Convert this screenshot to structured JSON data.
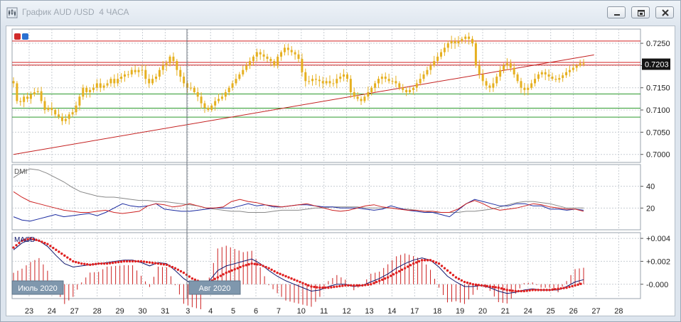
{
  "window": {
    "title": "График AUD /USD  4 ЧАСА",
    "controls": {
      "minimize": "minimize-icon",
      "restore": "restore-icon",
      "close": "close-icon"
    }
  },
  "colors": {
    "candle": "#e6b020",
    "resistance": "#d02020",
    "support": "#2c9a2c",
    "trendline": "#c42020",
    "dmi_plus": "#1a2aa0",
    "dmi_minus": "#cc2020",
    "adx": "#888888",
    "macd": "#10186e",
    "signal": "#e02020",
    "histogram": "#cc2020",
    "price_label_bg": "#141414"
  },
  "chart_data": [
    {
      "type": "candlestick",
      "name": "price",
      "y_ticks": [
        "0.7250",
        "0.7200",
        "0.7150",
        "0.7100",
        "0.7050",
        "0.7000"
      ],
      "y_tick_values": [
        0.725,
        0.72,
        0.715,
        0.71,
        0.705,
        0.7
      ],
      "ylim": [
        0.6982,
        0.7282
      ],
      "current_price": "0.7203",
      "horizontal_lines": {
        "resistance": [
          0.7255,
          0.7207,
          0.7201
        ],
        "support": [
          0.7136,
          0.7104,
          0.7084
        ]
      },
      "trendline": {
        "from": [
          0,
          0.7
        ],
        "to": [
          167,
          0.7224
        ]
      },
      "close": [
        0.716,
        0.712,
        0.7118,
        0.713,
        0.7125,
        0.7135,
        0.714,
        0.7142,
        0.712,
        0.71,
        0.7105,
        0.71,
        0.709,
        0.7085,
        0.7075,
        0.708,
        0.709,
        0.7095,
        0.711,
        0.713,
        0.715,
        0.714,
        0.7145,
        0.715,
        0.716,
        0.715,
        0.7155,
        0.716,
        0.717,
        0.716,
        0.717,
        0.7175,
        0.718,
        0.718,
        0.719,
        0.7185,
        0.719,
        0.719,
        0.717,
        0.716,
        0.717,
        0.7175,
        0.719,
        0.72,
        0.7205,
        0.722,
        0.721,
        0.719,
        0.7175,
        0.716,
        0.715,
        0.715,
        0.714,
        0.713,
        0.7115,
        0.7105,
        0.71,
        0.711,
        0.712,
        0.7125,
        0.713,
        0.714,
        0.715,
        0.716,
        0.717,
        0.718,
        0.719,
        0.72,
        0.721,
        0.722,
        0.723,
        0.7225,
        0.722,
        0.7215,
        0.721,
        0.72,
        0.722,
        0.723,
        0.724,
        0.7235,
        0.723,
        0.7225,
        0.7215,
        0.7185,
        0.7165,
        0.7165,
        0.717,
        0.7168,
        0.7165,
        0.716,
        0.7165,
        0.716,
        0.716,
        0.717,
        0.7175,
        0.718,
        0.717,
        0.714,
        0.713,
        0.7125,
        0.712,
        0.713,
        0.714,
        0.715,
        0.716,
        0.717,
        0.7175,
        0.717,
        0.7165,
        0.7165,
        0.716,
        0.715,
        0.7145,
        0.714,
        0.7145,
        0.715,
        0.716,
        0.717,
        0.718,
        0.719,
        0.72,
        0.721,
        0.722,
        0.723,
        0.724,
        0.725,
        0.7255,
        0.725,
        0.7255,
        0.726,
        0.7265,
        0.726,
        0.725,
        0.72,
        0.718,
        0.7165,
        0.7155,
        0.715,
        0.716,
        0.7175,
        0.719,
        0.72,
        0.7205,
        0.7195,
        0.718,
        0.7165,
        0.715,
        0.7145,
        0.715,
        0.716,
        0.717,
        0.718,
        0.7185,
        0.718,
        0.7175,
        0.717,
        0.7168,
        0.7172,
        0.7178,
        0.7185,
        0.719,
        0.7195,
        0.72,
        0.7205,
        0.7203
      ]
    },
    {
      "type": "line",
      "name": "DMI",
      "label": "DMI",
      "y_ticks": [
        "40",
        "20"
      ],
      "y_tick_values": [
        40,
        20
      ],
      "ylim": [
        0,
        60
      ],
      "series": [
        {
          "key": "adx",
          "values": [
            48,
            53,
            56,
            55,
            52,
            48,
            44,
            39,
            35,
            33,
            31,
            30,
            30,
            29,
            28,
            27,
            27,
            26,
            26,
            25,
            24,
            23,
            22,
            20,
            19,
            18,
            17,
            17,
            16,
            16,
            16,
            17,
            18,
            18,
            18,
            19,
            20,
            20,
            21,
            21,
            21,
            21,
            20,
            20,
            20,
            20,
            19,
            19,
            18,
            17,
            16,
            16,
            16,
            16,
            17,
            17,
            18,
            19,
            21,
            23,
            25,
            26,
            26,
            25,
            24,
            22,
            20,
            20,
            20
          ]
        },
        {
          "key": "dmi_plus",
          "values": [
            12,
            9,
            8,
            10,
            12,
            14,
            12,
            13,
            14,
            15,
            13,
            16,
            20,
            24,
            22,
            21,
            22,
            24,
            19,
            18,
            17,
            17,
            18,
            19,
            20,
            20,
            20,
            22,
            24,
            22,
            23,
            21,
            21,
            22,
            23,
            23,
            22,
            21,
            21,
            20,
            20,
            20,
            19,
            18,
            19,
            22,
            20,
            18,
            17,
            16,
            16,
            14,
            12,
            18,
            24,
            28,
            26,
            24,
            22,
            22,
            24,
            24,
            22,
            22,
            19,
            19,
            18,
            19,
            18
          ]
        },
        {
          "key": "dmi_minus",
          "values": [
            35,
            30,
            26,
            24,
            22,
            20,
            18,
            17,
            16,
            16,
            17,
            18,
            16,
            15,
            16,
            17,
            22,
            24,
            23,
            21,
            22,
            24,
            22,
            20,
            20,
            21,
            26,
            28,
            26,
            25,
            23,
            22,
            21,
            22,
            23,
            24,
            22,
            20,
            18,
            17,
            18,
            20,
            22,
            23,
            21,
            20,
            19,
            18,
            18,
            17,
            17,
            16,
            16,
            19,
            24,
            27,
            24,
            20,
            18,
            19,
            20,
            22,
            24,
            23,
            21,
            20,
            19,
            19,
            17
          ]
        }
      ]
    },
    {
      "type": "line",
      "name": "MACD",
      "label": "MACD",
      "y_ticks": [
        "+0.004",
        "+0.002",
        "-0.000"
      ],
      "y_tick_values": [
        0.004,
        0.002,
        0.0
      ],
      "ylim": [
        -0.00125,
        0.0045
      ],
      "series": [
        {
          "key": "macd",
          "values": [
            0.003,
            0.0036,
            0.0039,
            0.0038,
            0.0033,
            0.0025,
            0.0018,
            0.0015,
            0.0016,
            0.0017,
            0.0018,
            0.0019,
            0.002,
            0.0021,
            0.0021,
            0.0019,
            0.0016,
            0.0019,
            0.0018,
            0.0012,
            0.0005,
            0.0,
            -0.0003,
            0.0003,
            0.0012,
            0.0016,
            0.0018,
            0.002,
            0.0022,
            0.0018,
            0.0012,
            0.0007,
            0.0003,
            0.0,
            -0.0003,
            -0.0006,
            -0.0005,
            -0.0002,
            0.0,
            0.0,
            -0.0002,
            -0.0001,
            0.0002,
            0.0005,
            0.0009,
            0.0014,
            0.0018,
            0.0021,
            0.0023,
            0.0021,
            0.0015,
            0.0007,
            0.0002,
            -0.0002,
            -0.0002,
            -0.0001,
            -0.0003,
            -0.0006,
            -0.0008,
            -0.0007,
            -0.0005,
            -0.0004,
            -0.0005,
            -0.0005,
            -0.0005,
            -0.0002,
            0.0002,
            0.0004
          ]
        },
        {
          "key": "signal",
          "values": [
            0.0032,
            0.0038,
            0.004,
            0.0038,
            0.0035,
            0.003,
            0.0025,
            0.002,
            0.0018,
            0.0017,
            0.0018,
            0.0018,
            0.0019,
            0.002,
            0.002,
            0.002,
            0.0019,
            0.0018,
            0.0017,
            0.0014,
            0.001,
            0.0005,
            0.0002,
            0.0002,
            0.0006,
            0.001,
            0.0013,
            0.0016,
            0.0018,
            0.0017,
            0.0014,
            0.001,
            0.0007,
            0.0004,
            0.0001,
            -0.0002,
            -0.0003,
            -0.0003,
            -0.0002,
            -0.0001,
            -0.0001,
            -0.0001,
            0.0,
            0.0003,
            0.0006,
            0.001,
            0.0014,
            0.0018,
            0.0021,
            0.0021,
            0.0018,
            0.0012,
            0.0006,
            0.0002,
            0.0,
            -0.0001,
            -0.0002,
            -0.0003,
            -0.0005,
            -0.0006,
            -0.0006,
            -0.0005,
            -0.0005,
            -0.0005,
            -0.0004,
            -0.0003,
            -0.0001,
            0.0001
          ]
        }
      ]
    }
  ],
  "time_axis": {
    "day_labels": [
      "23",
      "24",
      "27",
      "28",
      "29",
      "30",
      "31",
      "3",
      "4",
      "5",
      "6",
      "7",
      "10",
      "11",
      "12",
      "13",
      "14",
      "17",
      "18",
      "19",
      "20",
      "21",
      "24",
      "25",
      "26",
      "27",
      "28"
    ],
    "month_labels": [
      "Июль 2020",
      "Авг 2020"
    ]
  }
}
